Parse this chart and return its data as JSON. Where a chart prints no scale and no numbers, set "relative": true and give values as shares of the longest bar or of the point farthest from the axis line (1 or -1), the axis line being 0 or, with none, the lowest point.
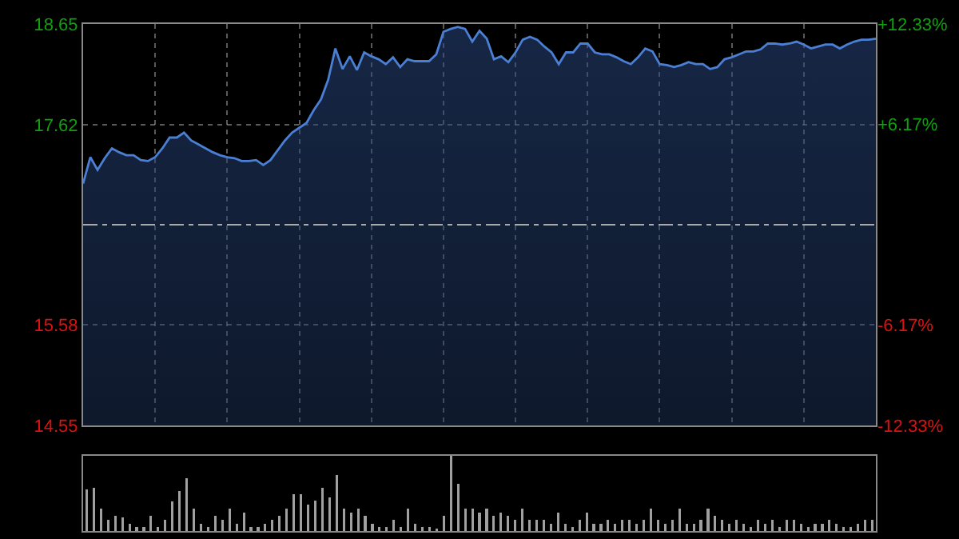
{
  "chart_data": [
    {
      "type": "area",
      "categories": [
        null,
        null,
        null,
        null,
        null,
        null,
        null,
        null,
        null,
        null,
        null,
        null,
        null,
        null,
        null,
        null,
        null,
        null,
        null,
        null,
        null,
        null,
        null,
        null,
        null,
        null,
        null,
        null,
        null,
        null,
        null,
        null,
        null,
        null,
        null,
        null,
        null,
        null,
        null,
        null,
        null,
        null,
        null,
        null,
        null,
        null,
        null,
        null,
        null,
        null,
        null,
        null,
        null,
        null,
        null,
        null,
        null,
        null,
        null,
        null,
        null,
        null,
        null,
        null,
        null,
        null,
        null,
        null,
        null,
        null,
        null,
        null,
        null,
        null,
        null,
        null,
        null,
        null,
        null,
        null,
        null,
        null,
        null,
        null,
        null,
        null,
        null,
        null,
        null,
        null,
        null,
        null,
        null,
        null,
        null,
        null,
        null,
        null,
        null,
        null,
        null,
        null,
        null,
        null,
        null,
        null,
        null,
        null,
        null,
        null,
        null
      ],
      "series": [
        {
          "color": "#4a7fd4",
          "values": [
            17.02,
            17.29,
            17.16,
            17.28,
            17.38,
            17.34,
            17.31,
            17.31,
            17.26,
            17.25,
            17.29,
            17.38,
            17.49,
            17.49,
            17.54,
            17.46,
            17.42,
            17.38,
            17.34,
            17.31,
            17.29,
            17.28,
            17.25,
            17.25,
            17.26,
            17.21,
            17.26,
            17.36,
            17.46,
            17.54,
            17.59,
            17.64,
            17.77,
            17.88,
            18.08,
            18.4,
            18.19,
            18.32,
            18.18,
            18.36,
            18.32,
            18.29,
            18.24,
            18.31,
            18.21,
            18.29,
            18.27,
            18.27,
            18.27,
            18.34,
            18.57,
            18.6,
            18.62,
            18.6,
            18.47,
            18.58,
            18.5,
            18.29,
            18.32,
            18.26,
            18.36,
            18.49,
            18.52,
            18.49,
            18.42,
            18.36,
            18.24,
            18.36,
            18.36,
            18.45,
            18.45,
            18.36,
            18.34,
            18.34,
            18.31,
            18.27,
            18.24,
            18.31,
            18.4,
            18.37,
            18.24,
            18.23,
            18.21,
            18.23,
            18.26,
            18.24,
            18.24,
            18.19,
            18.21,
            18.29,
            18.31,
            18.34,
            18.37,
            18.37,
            18.39,
            18.45,
            18.45,
            18.44,
            18.45,
            18.47,
            18.44,
            18.4,
            18.42,
            18.44,
            18.44,
            18.4,
            18.44,
            18.47,
            18.49,
            18.49,
            18.5
          ]
        }
      ],
      "ylim": [
        14.55,
        18.65
      ],
      "yticks": [
        14.55,
        15.58,
        17.62,
        18.65
      ],
      "y2lim": [
        -12.33,
        12.33
      ],
      "y2ticks": [
        {
          "value": -12.33,
          "label": "-12.33%"
        },
        {
          "value": -6.17,
          "label": "-6.17%"
        },
        {
          "value": 6.17,
          "label": "+6.17%"
        },
        {
          "value": 12.33,
          "label": "+12.33%"
        }
      ],
      "ref_lines": [
        {
          "axis": "y",
          "value": 16.6,
          "line_style": "dashed"
        }
      ],
      "grid": true,
      "tick_labels": "y"
    },
    {
      "type": "bar",
      "relative": true,
      "color": "#a0a0a0",
      "categories": [
        null,
        null,
        null,
        null,
        null,
        null,
        null,
        null,
        null,
        null,
        null,
        null,
        null,
        null,
        null,
        null,
        null,
        null,
        null,
        null,
        null,
        null,
        null,
        null,
        null,
        null,
        null,
        null,
        null,
        null,
        null,
        null,
        null,
        null,
        null,
        null,
        null,
        null,
        null,
        null,
        null,
        null,
        null,
        null,
        null,
        null,
        null,
        null,
        null,
        null,
        null,
        null,
        null,
        null,
        null,
        null,
        null,
        null,
        null,
        null,
        null,
        null,
        null,
        null,
        null,
        null,
        null,
        null,
        null,
        null,
        null,
        null,
        null,
        null,
        null,
        null,
        null,
        null,
        null,
        null,
        null,
        null,
        null,
        null,
        null,
        null,
        null,
        null,
        null,
        null,
        null,
        null,
        null,
        null,
        null,
        null,
        null,
        null,
        null,
        null,
        null,
        null,
        null,
        null,
        null,
        null,
        null,
        null,
        null,
        null,
        null
      ],
      "values": [
        0.55,
        0.57,
        0.3,
        0.15,
        0.2,
        0.18,
        0.1,
        0.05,
        0.05,
        0.2,
        0.05,
        0.15,
        0.39,
        0.53,
        0.7,
        0.3,
        0.1,
        0.05,
        0.2,
        0.15,
        0.3,
        0.1,
        0.25,
        0.05,
        0.05,
        0.1,
        0.15,
        0.2,
        0.3,
        0.49,
        0.49,
        0.35,
        0.4,
        0.57,
        0.45,
        0.75,
        0.3,
        0.25,
        0.3,
        0.2,
        0.1,
        0.05,
        0.05,
        0.15,
        0.05,
        0.3,
        0.1,
        0.05,
        0.05,
        0.03,
        0.2,
        1,
        0.63,
        0.3,
        0.3,
        0.25,
        0.3,
        0.2,
        0.25,
        0.2,
        0.15,
        0.3,
        0.15,
        0.15,
        0.15,
        0.1,
        0.25,
        0.1,
        0.05,
        0.15,
        0.25,
        0.1,
        0.1,
        0.15,
        0.1,
        0.15,
        0.15,
        0.1,
        0.15,
        0.3,
        0.15,
        0.1,
        0.15,
        0.3,
        0.1,
        0.1,
        0.15,
        0.3,
        0.2,
        0.15,
        0.1,
        0.15,
        0.1,
        0.05,
        0.15,
        0.1,
        0.15,
        0.05,
        0.15,
        0.15,
        0.1,
        0.05,
        0.1,
        0.1,
        0.15,
        0.1,
        0.05,
        0.05,
        0.1,
        0.15,
        0.15
      ]
    }
  ]
}
